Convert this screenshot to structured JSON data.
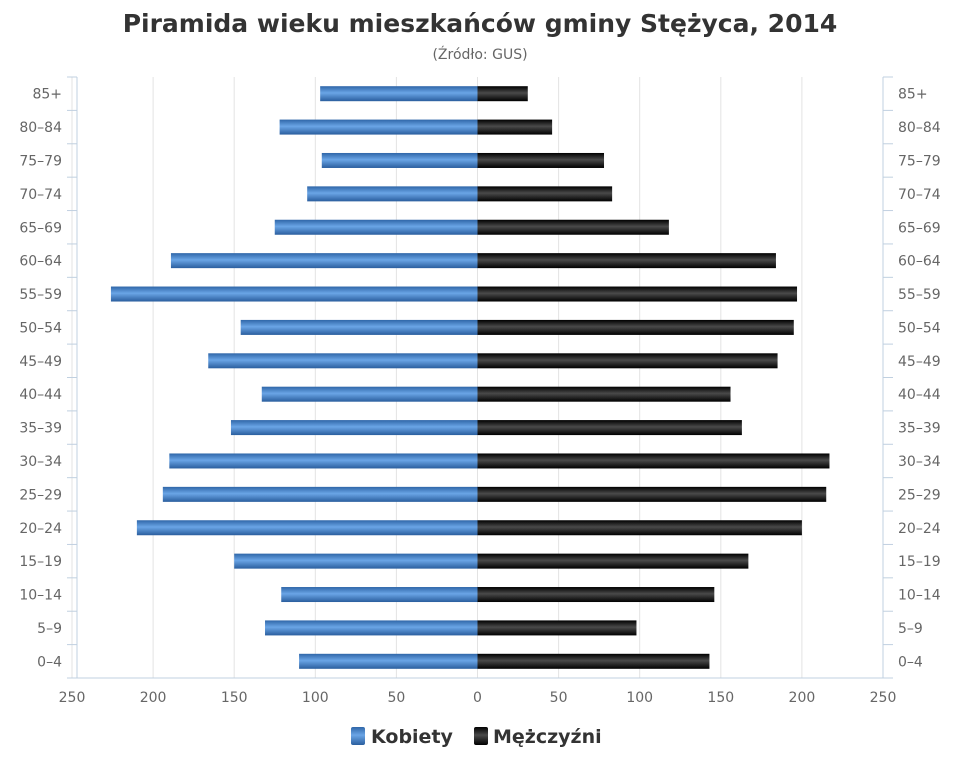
{
  "chart_data": {
    "type": "bar",
    "orientation": "horizontal-pyramid",
    "title": "Piramida wieku mieszkańców gminy Stężyca, 2014",
    "subtitle": "(Źródło: GUS)",
    "categories": [
      "85+",
      "80-84",
      "75-79",
      "70-74",
      "65-69",
      "60-64",
      "55-59",
      "50-54",
      "45-49",
      "40-44",
      "35-39",
      "30-34",
      "25-29",
      "20-24",
      "15-19",
      "10-14",
      "5-9",
      "0-4"
    ],
    "series": [
      {
        "name": "Kobiety",
        "color": "#3d7cc4",
        "values": [
          97,
          122,
          96,
          105,
          125,
          189,
          226,
          146,
          166,
          133,
          152,
          190,
          194,
          210,
          150,
          121,
          131,
          110
        ]
      },
      {
        "name": "Mężczyźni",
        "color": "#1a1a1a",
        "values": [
          31,
          46,
          78,
          83,
          118,
          184,
          197,
          195,
          185,
          156,
          163,
          217,
          215,
          200,
          167,
          146,
          98,
          143
        ]
      }
    ],
    "xlim": [
      -250,
      250
    ],
    "xticks": [
      -250,
      -200,
      -150,
      -100,
      -50,
      0,
      50,
      100,
      150,
      200,
      250
    ],
    "xtick_labels": [
      "250",
      "200",
      "150",
      "100",
      "50",
      "0",
      "50",
      "100",
      "150",
      "200",
      "250"
    ],
    "grid": true,
    "legend": "bottom-center"
  }
}
